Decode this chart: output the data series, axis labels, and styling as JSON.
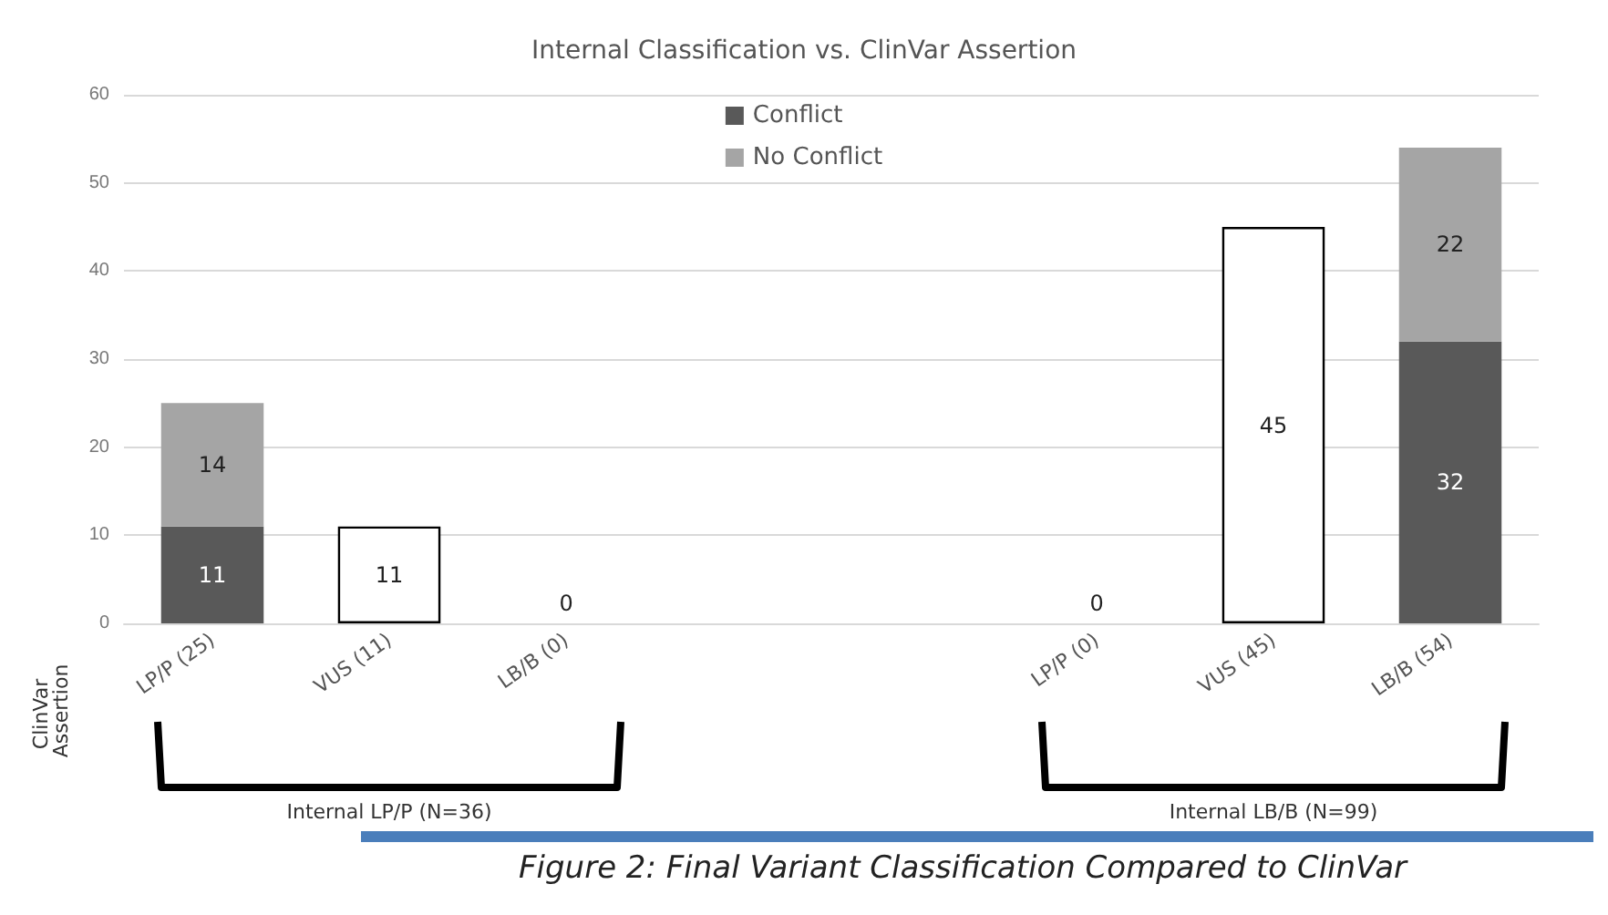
{
  "chart_data": {
    "type": "bar",
    "title": "Internal Classification vs. ClinVar Assertion",
    "ylabel": "ClinVar Assertion",
    "categories": [
      "LP/P (25)",
      "VUS (11)",
      "LB/B (0)",
      null,
      null,
      "LP/P (0)",
      "VUS (45)",
      "LB/B (54)"
    ],
    "series": [
      {
        "name": "Conflict",
        "color": "#595959",
        "values": [
          11,
          null,
          null,
          null,
          null,
          null,
          null,
          32
        ]
      },
      {
        "name": "No Conflict",
        "color": "#a5a5a5",
        "values": [
          14,
          null,
          null,
          null,
          null,
          null,
          null,
          22
        ]
      },
      {
        "color": "#ffffff",
        "values": [
          null,
          11,
          0,
          null,
          null,
          0,
          45,
          null
        ]
      }
    ],
    "stacked": true,
    "ylim": [
      0,
      60
    ],
    "yticks": [
      0,
      10,
      20,
      30,
      40,
      50,
      60
    ],
    "grid": "y",
    "legend": "top",
    "data_labels": true,
    "annotations": [
      "Internal LP/P (N=36)",
      "Internal LB/B (N=99)",
      "Figure 2: Final Variant Classification Compared to ClinVar"
    ]
  }
}
